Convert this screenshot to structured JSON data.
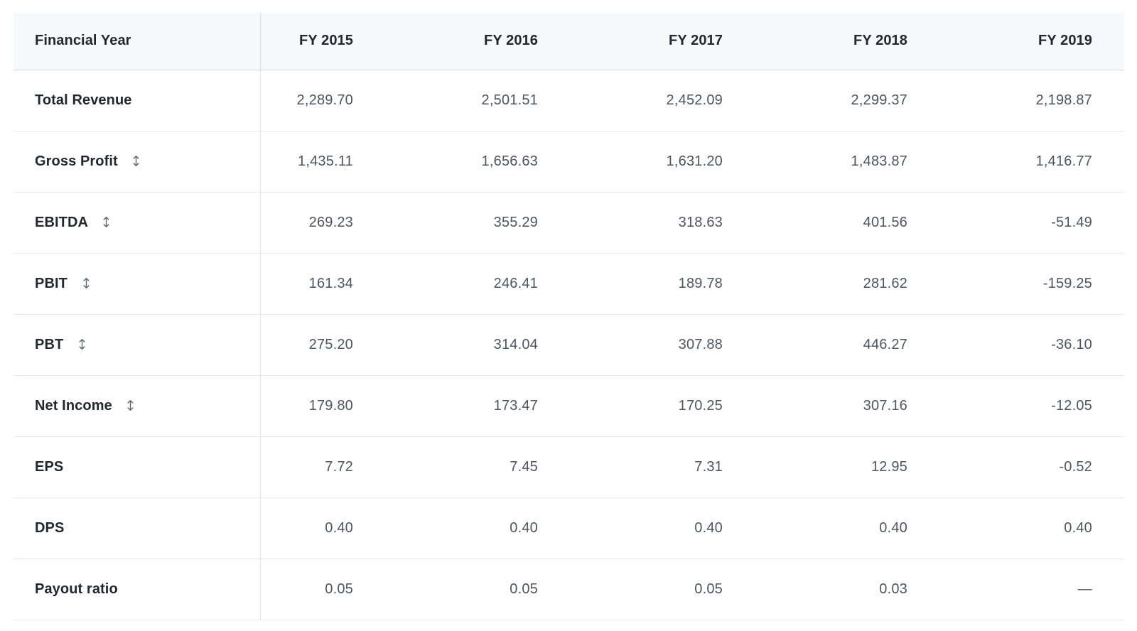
{
  "table": {
    "header": {
      "label_col": "Financial Year",
      "year_cols": [
        "FY 2015",
        "FY 2016",
        "FY 2017",
        "FY 2018",
        "FY 2019"
      ]
    },
    "rows": [
      {
        "label": "Total Revenue",
        "sortable": false,
        "values": [
          "2,289.70",
          "2,501.51",
          "2,452.09",
          "2,299.37",
          "2,198.87"
        ]
      },
      {
        "label": "Gross Profit",
        "sortable": true,
        "values": [
          "1,435.11",
          "1,656.63",
          "1,631.20",
          "1,483.87",
          "1,416.77"
        ]
      },
      {
        "label": "EBITDA",
        "sortable": true,
        "values": [
          "269.23",
          "355.29",
          "318.63",
          "401.56",
          "-51.49"
        ]
      },
      {
        "label": "PBIT",
        "sortable": true,
        "values": [
          "161.34",
          "246.41",
          "189.78",
          "281.62",
          "-159.25"
        ]
      },
      {
        "label": "PBT",
        "sortable": true,
        "values": [
          "275.20",
          "314.04",
          "307.88",
          "446.27",
          "-36.10"
        ]
      },
      {
        "label": "Net Income",
        "sortable": true,
        "values": [
          "179.80",
          "173.47",
          "170.25",
          "307.16",
          "-12.05"
        ]
      },
      {
        "label": "EPS",
        "sortable": false,
        "values": [
          "7.72",
          "7.45",
          "7.31",
          "12.95",
          "-0.52"
        ]
      },
      {
        "label": "DPS",
        "sortable": false,
        "values": [
          "0.40",
          "0.40",
          "0.40",
          "0.40",
          "0.40"
        ]
      },
      {
        "label": "Payout ratio",
        "sortable": false,
        "values": [
          "0.05",
          "0.05",
          "0.05",
          "0.03",
          "—"
        ]
      }
    ]
  },
  "icons": {
    "sort": "up-down-arrow"
  },
  "colors": {
    "page_bg": "#ffffff",
    "header_bg": "#f7f8f9",
    "header_border": "#d3d6db",
    "row_border": "#e6e8eb",
    "column_divider": "#e1e3e7",
    "label_text": "#23272f",
    "value_text": "#4e5560",
    "sort_icon": "#5b6370"
  }
}
